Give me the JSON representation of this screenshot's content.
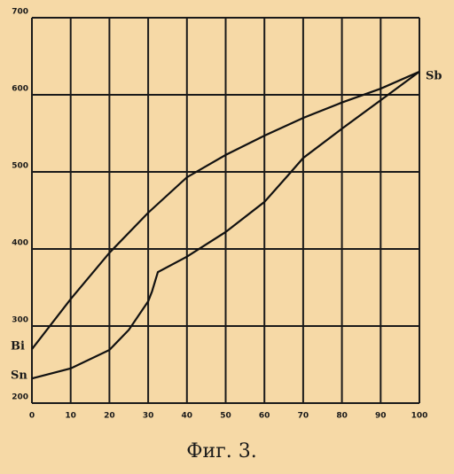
{
  "chart_data": {
    "type": "line",
    "title": "Фиг. 3.",
    "series": [
      {
        "name": "Bi",
        "color": "#111111",
        "x": [
          0,
          10,
          20,
          30,
          40,
          50,
          60,
          70,
          80,
          90,
          100
        ],
        "values": [
          270,
          335,
          395,
          447,
          493,
          522,
          547,
          570,
          590,
          608,
          630
        ]
      },
      {
        "name": "Sn",
        "color": "#111111",
        "x": [
          0,
          10,
          20,
          25,
          30,
          31,
          32.5,
          40,
          50,
          60,
          66,
          70,
          80,
          90,
          100
        ],
        "values": [
          232,
          245,
          269,
          295,
          332,
          345,
          370,
          390,
          422,
          461,
          495,
          518,
          556,
          593,
          630
        ]
      }
    ],
    "annotations": [
      "Sb"
    ],
    "xlim": [
      0,
      100
    ],
    "xticks": [
      0,
      10,
      20,
      30,
      40,
      50,
      60,
      70,
      80,
      90,
      100
    ],
    "ylim": [
      200,
      700
    ],
    "yticks": [
      200,
      300,
      400,
      500,
      600,
      700
    ],
    "grid": true
  }
}
